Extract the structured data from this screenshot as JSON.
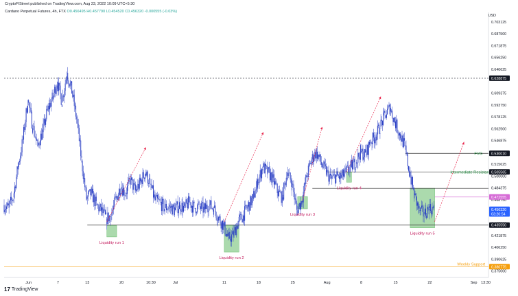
{
  "header": {
    "published": "CryptoFIStreet published on TradingView.com, Aug 23, 2022 10:09 UTC+5:30",
    "symbol": "Cardano Perpetual Futures, 4h, FTX",
    "ohlc": "O0.456495 H0.457790 L0.454520 C0.456320 -0.000555 (-0.03%)"
  },
  "colors": {
    "candle": "#2a3fc4",
    "arrow": "#e8264c",
    "liquidity_label": "#c2185b",
    "zone_fill": "#66bb6a",
    "resistance": "#1b8c3a",
    "support": "#f59e0b",
    "dashed": "#131722"
  },
  "price_axis": {
    "currency": "USD",
    "ticks": [
      "0.703125",
      "0.687500",
      "0.671875",
      "0.656250",
      "0.640625",
      "0.609375",
      "0.593750",
      "0.578125",
      "0.562500",
      "0.546875",
      "0.515625",
      "0.500000",
      "0.484375",
      "0.468750",
      "0.453125",
      "0.437500",
      "0.421875",
      "0.406250",
      "0.390625",
      "0.375000"
    ],
    "badges": [
      {
        "price": "0.628875",
        "style": "dark"
      },
      {
        "price": "0.530010",
        "style": "dark"
      },
      {
        "price": "0.505565",
        "style": "dark"
      },
      {
        "price": "0.472555",
        "style": "pink"
      },
      {
        "price": "0.456320",
        "style": "blue"
      },
      {
        "price": "03:20:54",
        "style": "blue"
      },
      {
        "price": "0.435550",
        "style": "dark"
      },
      {
        "price": "0.380775",
        "style": "orange"
      }
    ]
  },
  "time_axis": [
    "Jun",
    "7",
    "13",
    "20",
    "10:30",
    "Jul",
    "11",
    "18",
    "25",
    "Aug",
    "8",
    "15",
    "22",
    "Sep",
    "13:30"
  ],
  "annotations": {
    "liquidity_runs": [
      "Liquidity run 1",
      "Liquidity run 2",
      "Liquidity run 3",
      "Liquidity run 4",
      "Liquidity run 5"
    ],
    "fvg": "FVG",
    "intermediate_resistance": "Intermediate Resistance",
    "weekly_support": "Weekly Support"
  },
  "footer": {
    "brand": "TradingView"
  },
  "chart_data": {
    "type": "candlestick",
    "title": "Cardano Perpetual Futures, 4h, FTX",
    "ylabel": "USD",
    "ylim": [
      0.372,
      0.712
    ],
    "x_range": [
      "May 27",
      "Sep 3"
    ],
    "close_path": [
      [
        "May 27",
        0.462
      ],
      [
        "May 28",
        0.458
      ],
      [
        "May 29",
        0.472
      ],
      [
        "May 30",
        0.512
      ],
      [
        "May 31",
        0.548
      ],
      [
        "Jun 1",
        0.6
      ],
      [
        "Jun 2",
        0.566
      ],
      [
        "Jun 3",
        0.54
      ],
      [
        "Jun 4",
        0.558
      ],
      [
        "Jun 5",
        0.586
      ],
      [
        "Jun 6",
        0.602
      ],
      [
        "Jun 7",
        0.624
      ],
      [
        "Jun 8",
        0.598
      ],
      [
        "Jun 9",
        0.636
      ],
      [
        "Jun 10",
        0.612
      ],
      [
        "Jun 11",
        0.575
      ],
      [
        "Jun 12",
        0.52
      ],
      [
        "Jun 13",
        0.47
      ],
      [
        "Jun 14",
        0.478
      ],
      [
        "Jun 15",
        0.462
      ],
      [
        "Jun 16",
        0.455
      ],
      [
        "Jun 17",
        0.444
      ],
      [
        "Jun 18",
        0.448
      ],
      [
        "Jun 19",
        0.47
      ],
      [
        "Jun 20",
        0.486
      ],
      [
        "Jun 21",
        0.478
      ],
      [
        "Jun 22",
        0.495
      ],
      [
        "Jun 23",
        0.48
      ],
      [
        "Jun 24",
        0.492
      ],
      [
        "Jun 25",
        0.505
      ],
      [
        "Jun 26",
        0.49
      ],
      [
        "Jun 27",
        0.468
      ],
      [
        "Jun 28",
        0.465
      ],
      [
        "Jun 29",
        0.458
      ],
      [
        "Jun 30",
        0.46
      ],
      [
        "Jul 1",
        0.455
      ],
      [
        "Jul 2",
        0.462
      ],
      [
        "Jul 3",
        0.458
      ],
      [
        "Jul 4",
        0.466
      ],
      [
        "Jul 5",
        0.458
      ],
      [
        "Jul 6",
        0.46
      ],
      [
        "Jul 7",
        0.456
      ],
      [
        "Jul 8",
        0.462
      ],
      [
        "Jul 9",
        0.458
      ],
      [
        "Jul 10",
        0.445
      ],
      [
        "Jul 11",
        0.435
      ],
      [
        "Jul 12",
        0.418
      ],
      [
        "Jul 13",
        0.422
      ],
      [
        "Jul 14",
        0.44
      ],
      [
        "Jul 15",
        0.448
      ],
      [
        "Jul 16",
        0.46
      ],
      [
        "Jul 17",
        0.47
      ],
      [
        "Jul 18",
        0.492
      ],
      [
        "Jul 19",
        0.512
      ],
      [
        "Jul 20",
        0.505
      ],
      [
        "Jul 21",
        0.498
      ],
      [
        "Jul 22",
        0.48
      ],
      [
        "Jul 23",
        0.472
      ],
      [
        "Jul 24",
        0.505
      ],
      [
        "Jul 25",
        0.49
      ],
      [
        "Jul 26",
        0.455
      ],
      [
        "Jul 27",
        0.468
      ],
      [
        "Jul 28",
        0.5
      ],
      [
        "Jul 29",
        0.522
      ],
      [
        "Jul 30",
        0.532
      ],
      [
        "Jul 31",
        0.516
      ],
      [
        "Aug 1",
        0.505
      ],
      [
        "Aug 2",
        0.496
      ],
      [
        "Aug 3",
        0.5
      ],
      [
        "Aug 4",
        0.498
      ],
      [
        "Aug 5",
        0.505
      ],
      [
        "Aug 6",
        0.512
      ],
      [
        "Aug 7",
        0.518
      ],
      [
        "Aug 8",
        0.532
      ],
      [
        "Aug 9",
        0.528
      ],
      [
        "Aug 10",
        0.545
      ],
      [
        "Aug 11",
        0.552
      ],
      [
        "Aug 12",
        0.565
      ],
      [
        "Aug 13",
        0.58
      ],
      [
        "Aug 14",
        0.59
      ],
      [
        "Aug 15",
        0.572
      ],
      [
        "Aug 16",
        0.556
      ],
      [
        "Aug 17",
        0.54
      ],
      [
        "Aug 18",
        0.505
      ],
      [
        "Aug 19",
        0.475
      ],
      [
        "Aug 20",
        0.455
      ],
      [
        "Aug 21",
        0.45
      ],
      [
        "Aug 22",
        0.458
      ],
      [
        "Aug 23",
        0.456
      ]
    ],
    "levels": [
      {
        "label": "0.628875",
        "price": 0.628875,
        "style": "dashed"
      },
      {
        "label": "FVG",
        "price": 0.53001,
        "style": "solid"
      },
      {
        "label": "Intermediate Resistance",
        "price": 0.505565,
        "style": "solid"
      },
      {
        "label": "0.472555",
        "price": 0.472555,
        "style": "solid"
      },
      {
        "label": "0.435550",
        "price": 0.43555,
        "style": "solid"
      },
      {
        "label": "Weekly Support",
        "price": 0.380775,
        "style": "solid"
      }
    ],
    "liquidity_zones": [
      {
        "label": "Liquidity run 1",
        "from": "Jun 17",
        "to": "Jun 19",
        "low": 0.42,
        "high": 0.435
      },
      {
        "label": "Liquidity run 2",
        "from": "Jul 11",
        "to": "Jul 14",
        "low": 0.4,
        "high": 0.435
      },
      {
        "label": "Liquidity run 3",
        "from": "Jul 26",
        "to": "Jul 28",
        "low": 0.457,
        "high": 0.473
      },
      {
        "label": "Liquidity run 4",
        "from": "Aug 5",
        "to": "Aug 6",
        "low": 0.492,
        "high": 0.505
      },
      {
        "label": "Liquidity run 5",
        "from": "Aug 18",
        "to": "Aug 23",
        "low": 0.432,
        "high": 0.484
      }
    ],
    "projection_arrows": [
      {
        "from": [
          "Jun 17",
          0.44
        ],
        "to": [
          "Jun 25",
          0.538
        ]
      },
      {
        "from": [
          "Jul 11",
          0.44
        ],
        "to": [
          "Jul 19",
          0.558
        ]
      },
      {
        "from": [
          "Jul 27",
          0.468
        ],
        "to": [
          "Jul 31",
          0.565
        ]
      },
      {
        "from": [
          "Aug 5",
          0.505
        ],
        "to": [
          "Aug 12",
          0.605
        ]
      },
      {
        "from": [
          "Aug 23",
          0.44
        ],
        "to": [
          "Aug 29",
          0.545
        ]
      }
    ]
  }
}
